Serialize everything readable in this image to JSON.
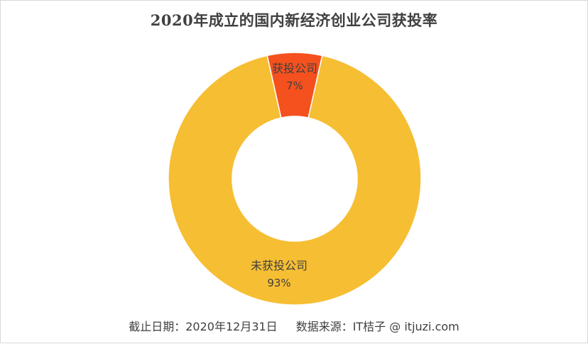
{
  "chart_data": {
    "type": "pie",
    "title": "2020年成立的国内新经济创业公司获投率",
    "categories": [
      "获投公司",
      "未获投公司"
    ],
    "values": [
      7,
      93
    ],
    "value_labels": [
      "7%",
      "93%"
    ],
    "colors": [
      "#F4511E",
      "#F6BE33"
    ],
    "donut": true,
    "legend": "none"
  },
  "footer": {
    "date_text": "截止日期：2020年12月31日",
    "source_text": "数据来源：IT桔子 @ itjuzi.com"
  }
}
